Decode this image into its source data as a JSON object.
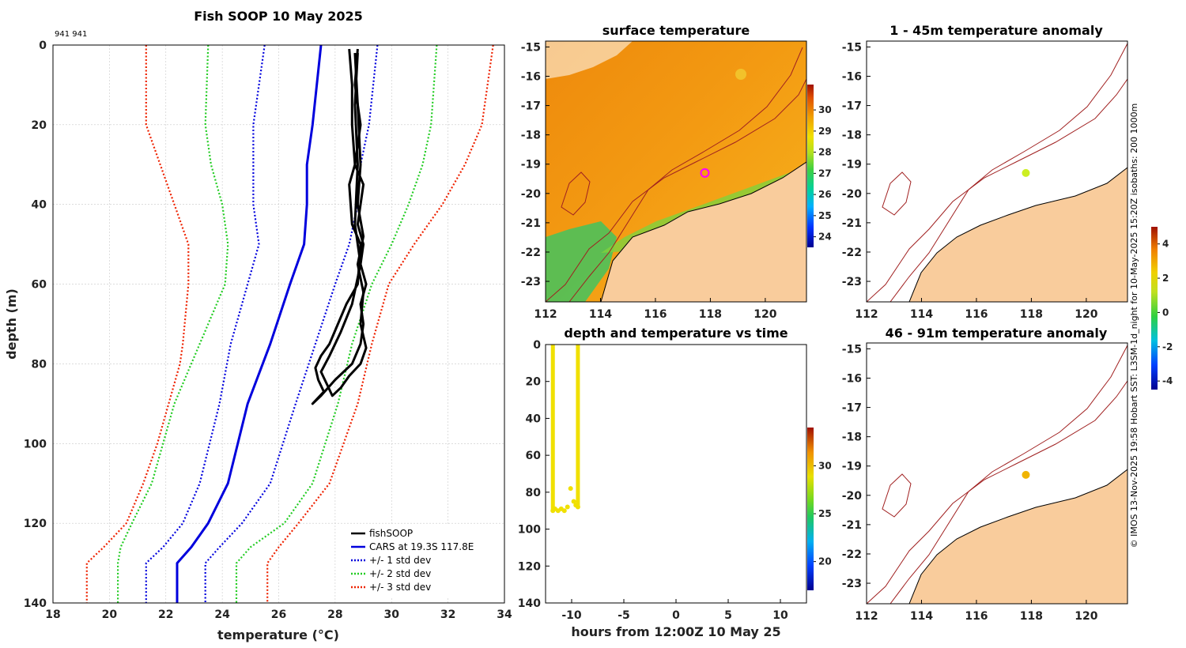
{
  "chart_data": [
    {
      "id": "profile",
      "type": "line",
      "title": "Fish SOOP 10 May 2025",
      "annotation": "941 941",
      "xlabel": "temperature (°C)",
      "ylabel": "depth (m)",
      "xlim": [
        18,
        34
      ],
      "ylim": [
        0,
        140
      ],
      "xticks": [
        "18",
        "20",
        "22",
        "24",
        "26",
        "28",
        "30",
        "32",
        "34"
      ],
      "yticks": [
        "0",
        "20",
        "40",
        "60",
        "80",
        "100",
        "120",
        "140"
      ],
      "grid": true,
      "legend": [
        {
          "label": "fishSOOP",
          "color": "#000000",
          "style": "solid"
        },
        {
          "label": "CARS at 19.3S 117.8E",
          "color": "#0000dd",
          "style": "solid"
        },
        {
          "label": "+/- 1 std dev",
          "color": "#0000dd",
          "style": "dotted"
        },
        {
          "label": "+/- 2 std dev",
          "color": "#22cc22",
          "style": "dotted"
        },
        {
          "label": "+/- 3 std dev",
          "color": "#ee2200",
          "style": "dotted"
        }
      ],
      "series": [
        {
          "name": "CARS at 19.3S 117.8E",
          "color": "#0000dd",
          "style": "solid",
          "depth": [
            0,
            20,
            30,
            40,
            50,
            60,
            75,
            90,
            110,
            120,
            126,
            130,
            140
          ],
          "temp": [
            27.5,
            27.2,
            27.0,
            27.0,
            26.9,
            26.4,
            25.7,
            24.9,
            24.2,
            23.5,
            22.9,
            22.4,
            22.4
          ]
        },
        {
          "name": "-1 std",
          "color": "#0000dd",
          "style": "dotted",
          "depth": [
            0,
            20,
            40,
            50,
            60,
            75,
            90,
            110,
            120,
            126,
            130,
            140
          ],
          "temp": [
            25.5,
            25.1,
            25.1,
            25.3,
            24.9,
            24.3,
            23.9,
            23.2,
            22.6,
            21.9,
            21.3,
            21.3
          ]
        },
        {
          "name": "+1 std",
          "color": "#0000dd",
          "style": "dotted",
          "depth": [
            0,
            20,
            30,
            40,
            50,
            60,
            75,
            90,
            110,
            120,
            126,
            130,
            140
          ],
          "temp": [
            29.5,
            29.2,
            28.9,
            28.8,
            28.5,
            28.0,
            27.3,
            26.6,
            25.7,
            24.7,
            23.9,
            23.4,
            23.4
          ]
        },
        {
          "name": "-2 std",
          "color": "#22cc22",
          "style": "dotted",
          "depth": [
            0,
            20,
            30,
            40,
            50,
            60,
            75,
            90,
            110,
            120,
            126,
            130,
            140
          ],
          "temp": [
            23.5,
            23.4,
            23.6,
            24.0,
            24.2,
            24.1,
            23.2,
            22.3,
            21.5,
            20.8,
            20.4,
            20.3,
            20.3
          ]
        },
        {
          "name": "+2 std",
          "color": "#22cc22",
          "style": "dotted",
          "depth": [
            0,
            20,
            30,
            40,
            50,
            60,
            75,
            90,
            110,
            120,
            126,
            130,
            140
          ],
          "temp": [
            31.6,
            31.4,
            31.1,
            30.6,
            30.0,
            29.3,
            28.6,
            28.1,
            27.2,
            26.2,
            25.0,
            24.5,
            24.5
          ]
        },
        {
          "name": "-3 std",
          "color": "#ee2200",
          "style": "dotted",
          "depth": [
            0,
            20,
            40,
            50,
            60,
            75,
            80,
            90,
            100,
            110,
            120,
            126,
            130,
            140
          ],
          "temp": [
            21.3,
            21.3,
            22.3,
            22.8,
            22.8,
            22.6,
            22.5,
            22.1,
            21.7,
            21.2,
            20.6,
            19.8,
            19.2,
            19.2
          ]
        },
        {
          "name": "+3 std",
          "color": "#ee2200",
          "style": "dotted",
          "depth": [
            0,
            20,
            30,
            40,
            50,
            60,
            75,
            90,
            110,
            120,
            126,
            130,
            140
          ],
          "temp": [
            33.6,
            33.2,
            32.6,
            31.8,
            30.8,
            29.9,
            29.3,
            28.8,
            27.8,
            26.7,
            26.0,
            25.6,
            25.6
          ]
        },
        {
          "name": "fishSOOP",
          "color": "#000000",
          "style": "solid",
          "depth": [
            1,
            10,
            20,
            30,
            35,
            45,
            50,
            60,
            65,
            70,
            75,
            78,
            81,
            84,
            87,
            90,
            88,
            84,
            80,
            75,
            70,
            65,
            60,
            55,
            50,
            45,
            40,
            35,
            30,
            20,
            10,
            1
          ],
          "temp": [
            28.5,
            28.6,
            28.6,
            28.7,
            28.5,
            28.6,
            28.9,
            28.8,
            28.4,
            28.1,
            27.8,
            27.5,
            27.3,
            27.4,
            27.6,
            27.2,
            27.5,
            28.0,
            28.6,
            28.9,
            29.0,
            28.9,
            29.1,
            28.9,
            29.0,
            28.8,
            28.9,
            29.0,
            28.7,
            28.9,
            28.7,
            28.8
          ]
        },
        {
          "name": "fishSOOP",
          "color": "#000000",
          "style": "solid",
          "depth": [
            2,
            15,
            30,
            45,
            55,
            65,
            72,
            78,
            82,
            85,
            88,
            86,
            83,
            80,
            76,
            70,
            62,
            55,
            48,
            40,
            30,
            15,
            2
          ],
          "temp": [
            28.8,
            28.7,
            28.8,
            28.7,
            28.9,
            28.6,
            28.2,
            27.8,
            27.5,
            27.7,
            27.9,
            28.2,
            28.5,
            28.9,
            29.1,
            28.9,
            29.0,
            28.8,
            29.0,
            28.8,
            28.9,
            28.8,
            28.7
          ]
        }
      ]
    },
    {
      "id": "sst-map",
      "type": "heatmap",
      "title": "surface temperature",
      "xlim": [
        112,
        121.5
      ],
      "ylim": [
        -23.7,
        -14.8
      ],
      "xticks": [
        "112",
        "114",
        "116",
        "118",
        "120"
      ],
      "yticks": [
        "-15",
        "-16",
        "-17",
        "-18",
        "-19",
        "-20",
        "-21",
        "-22",
        "-23"
      ],
      "colorbar": {
        "range": [
          23.5,
          31.2
        ],
        "ticks": [
          "24",
          "25",
          "26",
          "27",
          "28",
          "29",
          "30"
        ]
      },
      "location_marker": {
        "lon": 117.8,
        "lat": -19.3,
        "color": "#ff00ff"
      }
    },
    {
      "id": "time-series",
      "type": "scatter",
      "title": "depth and temperature vs time",
      "xlabel": "hours from 12:00Z 10 May 25",
      "xlim": [
        -12.5,
        12.5
      ],
      "ylim": [
        0,
        140
      ],
      "xticks": [
        "-10",
        "-5",
        "0",
        "5",
        "10"
      ],
      "yticks": [
        "0",
        "20",
        "40",
        "60",
        "80",
        "100",
        "120",
        "140"
      ],
      "colorbar": {
        "range": [
          17,
          34
        ],
        "ticks": [
          "20",
          "25",
          "30"
        ]
      },
      "x": [
        -11.8,
        -11.6,
        -11.3,
        -11.0,
        -10.7,
        -10.4,
        -10.1,
        -9.8,
        -9.6,
        -9.4
      ],
      "y": [
        90,
        89,
        90,
        89,
        90,
        88,
        78,
        85,
        87,
        88
      ]
    },
    {
      "id": "anom-upper",
      "type": "heatmap",
      "title": "1 - 45m temperature anomaly",
      "xlim": [
        112,
        121.5
      ],
      "ylim": [
        -23.7,
        -14.8
      ],
      "xticks": [
        "112",
        "114",
        "116",
        "118",
        "120"
      ],
      "yticks": [
        "-15",
        "-16",
        "-17",
        "-18",
        "-19",
        "-20",
        "-21",
        "-22",
        "-23"
      ],
      "anomaly_point": {
        "lon": 117.8,
        "lat": -19.3,
        "color": "#ccee22"
      }
    },
    {
      "id": "anom-lower",
      "type": "heatmap",
      "title": "46 - 91m temperature anomaly",
      "xlim": [
        112,
        121.5
      ],
      "ylim": [
        -23.7,
        -14.8
      ],
      "xticks": [
        "112",
        "114",
        "116",
        "118",
        "120"
      ],
      "yticks": [
        "-15",
        "-16",
        "-17",
        "-18",
        "-19",
        "-20",
        "-21",
        "-22",
        "-23"
      ],
      "anomaly_point": {
        "lon": 117.8,
        "lat": -19.3,
        "color": "#f0b400"
      }
    }
  ],
  "anomaly_colorbar": {
    "range": [
      -4.5,
      5
    ],
    "ticks": [
      "4",
      "2",
      "0",
      "-2",
      "-4"
    ]
  },
  "side_caption": "© IMOS 13-Nov-2025 19:58 Hobart SST: L3SM-1d_night for 10-May-2025 15:20Z isobaths: 200  1000m",
  "colors": {
    "land": "#f9cc9c",
    "isobath": "#a02020",
    "cars": "#0000dd",
    "std1": "#0000dd",
    "std2": "#22cc22",
    "std3": "#ee2200",
    "fishsoop": "#000000"
  }
}
